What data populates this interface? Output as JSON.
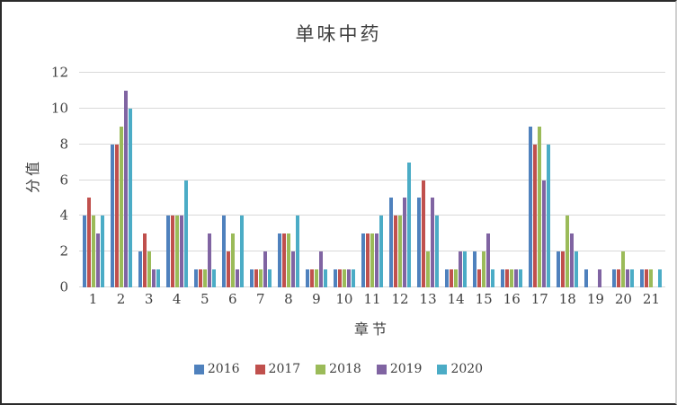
{
  "chart": {
    "title": "单味中药",
    "x_axis_title": "章节",
    "y_axis_title": "分值"
  },
  "chart_data": {
    "type": "bar",
    "title": "单味中药",
    "xlabel": "章节",
    "ylabel": "分值",
    "categories": [
      "1",
      "2",
      "3",
      "4",
      "5",
      "6",
      "7",
      "8",
      "9",
      "10",
      "11",
      "12",
      "13",
      "14",
      "15",
      "16",
      "17",
      "18",
      "19",
      "20",
      "21"
    ],
    "series": [
      {
        "name": "2016",
        "color": "#4F81BD",
        "values": [
          4,
          8,
          2,
          4,
          1,
          4,
          1,
          3,
          1,
          1,
          3,
          5,
          5,
          1,
          2,
          1,
          9,
          2,
          1,
          1,
          1
        ]
      },
      {
        "name": "2017",
        "color": "#C0504D",
        "values": [
          5,
          8,
          3,
          4,
          1,
          2,
          1,
          3,
          1,
          1,
          3,
          4,
          6,
          1,
          1,
          1,
          8,
          2,
          0,
          1,
          1
        ]
      },
      {
        "name": "2018",
        "color": "#9BBB59",
        "values": [
          4,
          9,
          2,
          4,
          1,
          3,
          1,
          3,
          1,
          1,
          3,
          4,
          2,
          1,
          2,
          1,
          9,
          4,
          0,
          2,
          1
        ]
      },
      {
        "name": "2019",
        "color": "#8064A2",
        "values": [
          3,
          11,
          1,
          4,
          3,
          1,
          2,
          2,
          2,
          1,
          3,
          5,
          5,
          2,
          3,
          1,
          6,
          3,
          1,
          1,
          0
        ]
      },
      {
        "name": "2020",
        "color": "#4BACC6",
        "values": [
          4,
          10,
          1,
          6,
          1,
          4,
          1,
          4,
          1,
          1,
          4,
          7,
          4,
          2,
          1,
          1,
          8,
          2,
          0,
          1,
          1
        ]
      }
    ],
    "ylim": [
      0,
      12
    ],
    "ytick_step": 2,
    "grid": true,
    "legend_position": "bottom",
    "gridline_color": "#D9D9D9",
    "text_color": "#3F3F3F"
  }
}
